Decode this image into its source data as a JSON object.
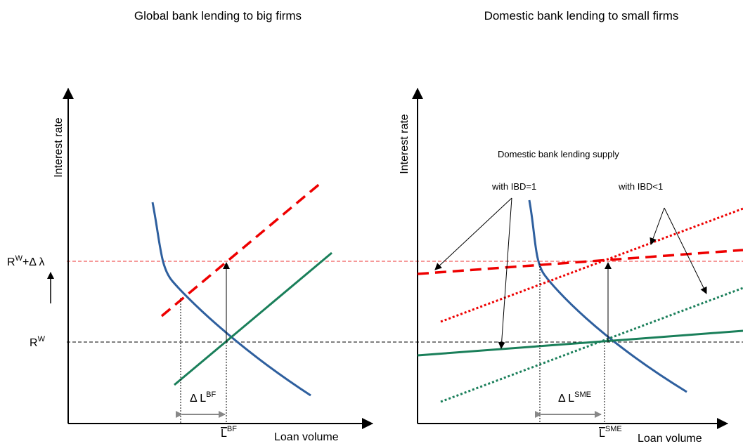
{
  "left_panel": {
    "title": "Global bank lending to big firms",
    "y_axis_label": "Interest rate",
    "x_axis_label": "Loan volume",
    "rate_high": {
      "base": "R",
      "sup": "W",
      "rest": "+Δ λ"
    },
    "rate_low": {
      "base": "R",
      "sup": "W"
    },
    "delta_label": {
      "text": "Δ L",
      "sup": "BF"
    },
    "equilibrium_label": {
      "text": "L",
      "sup": "BF"
    }
  },
  "right_panel": {
    "title": "Domestic bank lending to small firms",
    "y_axis_label": "Interest rate",
    "x_axis_label": "Loan volume",
    "annotation": "Domestic bank lending  supply",
    "note_ibd_one": "with IBD=1",
    "note_ibd_less": "with IBD<1",
    "delta_label": {
      "text": "Δ L",
      "sup": "SME"
    },
    "equilibrium_label": {
      "text": "L",
      "sup": "SME"
    }
  }
}
